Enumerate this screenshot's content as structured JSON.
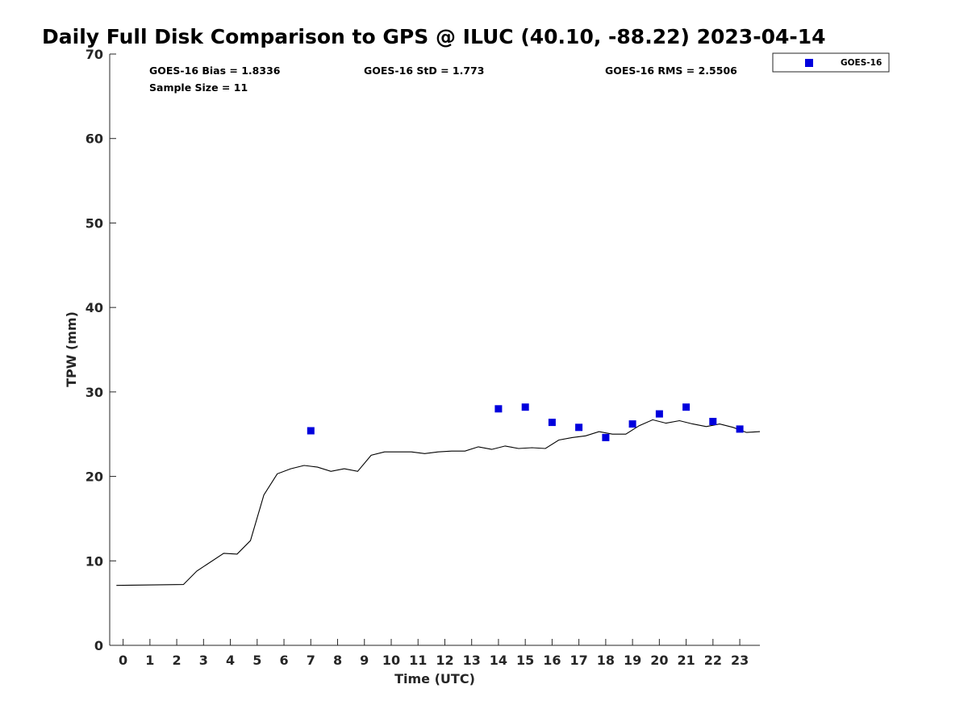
{
  "chart_data": {
    "type": "scatter",
    "title": "Daily Full Disk Comparison to GPS @ ILUC (40.10, -88.22) 2023-04-14",
    "xlabel": "Time (UTC)",
    "ylabel": "TPW (mm)",
    "xlim": [
      -0.5,
      23.75
    ],
    "ylim": [
      0,
      70
    ],
    "x_ticks": [
      0,
      1,
      2,
      3,
      4,
      5,
      6,
      7,
      8,
      9,
      10,
      11,
      12,
      13,
      14,
      15,
      16,
      17,
      18,
      19,
      20,
      21,
      22,
      23
    ],
    "y_ticks": [
      0,
      10,
      20,
      30,
      40,
      50,
      60,
      70
    ],
    "grid": false,
    "legend_position": "top-right, outside plot",
    "stats": {
      "bias": "GOES-16 Bias = 1.8336",
      "std": "GOES-16 StD = 1.773",
      "rms": "GOES-16 RMS = 2.5506",
      "sample_size": "Sample Size = 11"
    },
    "series": [
      {
        "name": "GOES-16",
        "kind": "scatter",
        "marker": "square",
        "color": "#0000dd",
        "x": [
          7,
          14,
          15,
          16,
          17,
          18,
          19,
          20,
          21,
          22,
          23
        ],
        "y": [
          25.4,
          28.0,
          28.2,
          26.4,
          25.8,
          24.6,
          26.2,
          27.4,
          28.2,
          26.5,
          25.6
        ]
      },
      {
        "kind": "line",
        "color": "#000000",
        "x": [
          -0.25,
          2.25,
          2.75,
          3.75,
          4.25,
          4.75,
          5.25,
          5.75,
          6.25,
          6.75,
          7.25,
          7.75,
          8.25,
          8.75,
          9.25,
          9.75,
          10.25,
          10.75,
          11.25,
          11.75,
          12.25,
          12.75,
          13.25,
          13.75,
          14.25,
          14.75,
          15.25,
          15.75,
          16.25,
          16.75,
          17.25,
          17.75,
          18.25,
          18.75,
          19.25,
          19.75,
          20.25,
          20.75,
          21.25,
          21.75,
          22.25,
          22.75,
          23.25,
          23.75
        ],
        "y": [
          7.1,
          7.2,
          8.8,
          10.9,
          10.8,
          12.4,
          17.8,
          20.3,
          20.9,
          21.3,
          21.1,
          20.6,
          20.9,
          20.6,
          22.5,
          22.9,
          22.9,
          22.9,
          22.7,
          22.9,
          23.0,
          23.0,
          23.5,
          23.2,
          23.6,
          23.3,
          23.4,
          23.3,
          24.3,
          24.6,
          24.8,
          25.3,
          25.0,
          25.0,
          26.0,
          26.7,
          26.3,
          26.6,
          26.2,
          25.9,
          26.2,
          25.8,
          25.2,
          25.3
        ]
      }
    ]
  }
}
